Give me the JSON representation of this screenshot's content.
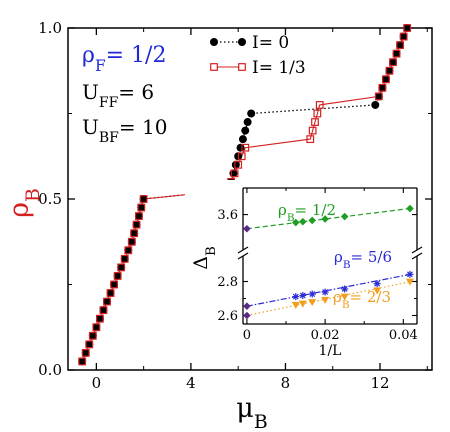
{
  "chart_data": [
    {
      "id": "main",
      "type": "scatter",
      "xlabel": {
        "base": "μ",
        "sub": "B"
      },
      "ylabel": {
        "base": "ρ",
        "sub": "B"
      },
      "xlim": [
        -1.2,
        14.2
      ],
      "ylim": [
        0.0,
        1.0
      ],
      "xticks": [
        0,
        4,
        8,
        12
      ],
      "xtick_labels": [
        "0",
        "4",
        "8",
        "12"
      ],
      "yticks": [
        0.0,
        0.5,
        1.0
      ],
      "ytick_labels": [
        "0.0",
        "0.5",
        "1.0"
      ],
      "annotations": [
        {
          "base": "ρ",
          "sub": "F",
          "rest": "= 1/2",
          "color": "#1f2ad6"
        },
        {
          "base": "U",
          "sub": "FF",
          "rest": "= 6",
          "color": "#000000"
        },
        {
          "base": "U",
          "sub": "BF",
          "rest": "= 10",
          "color": "#000000"
        }
      ],
      "legend_position": "top-center",
      "series": [
        {
          "name": "I= 0",
          "color": "#000000",
          "marker": "filled-circle",
          "points": [
            [
              -0.6,
              0.025
            ],
            [
              -0.45,
              0.05
            ],
            [
              -0.3,
              0.075
            ],
            [
              -0.15,
              0.1
            ],
            [
              0.0,
              0.125
            ],
            [
              0.15,
              0.15
            ],
            [
              0.3,
              0.175
            ],
            [
              0.45,
              0.2
            ],
            [
              0.6,
              0.225
            ],
            [
              0.75,
              0.25
            ],
            [
              0.9,
              0.275
            ],
            [
              1.05,
              0.3
            ],
            [
              1.2,
              0.325
            ],
            [
              1.35,
              0.35
            ],
            [
              1.5,
              0.375
            ],
            [
              1.6,
              0.4
            ],
            [
              1.7,
              0.425
            ],
            [
              1.8,
              0.45
            ],
            [
              1.9,
              0.475
            ],
            [
              2.0,
              0.5
            ],
            [
              5.55,
              0.525
            ],
            [
              5.7,
              0.55
            ],
            [
              5.8,
              0.575
            ],
            [
              5.9,
              0.6
            ],
            [
              6.0,
              0.625
            ],
            [
              6.1,
              0.65
            ],
            [
              6.2,
              0.675
            ],
            [
              6.3,
              0.7
            ],
            [
              6.4,
              0.725
            ],
            [
              6.55,
              0.75
            ],
            [
              11.8,
              0.775
            ],
            [
              11.95,
              0.8
            ],
            [
              12.1,
              0.825
            ],
            [
              12.25,
              0.85
            ],
            [
              12.4,
              0.875
            ],
            [
              12.55,
              0.9
            ],
            [
              12.7,
              0.925
            ],
            [
              12.85,
              0.95
            ],
            [
              13.0,
              0.975
            ],
            [
              13.15,
              1.0
            ]
          ]
        },
        {
          "name": "I= 1/3",
          "color": "#d42020",
          "marker": "open-square",
          "points": [
            [
              -0.6,
              0.025
            ],
            [
              -0.45,
              0.05
            ],
            [
              -0.3,
              0.075
            ],
            [
              -0.15,
              0.1
            ],
            [
              0.0,
              0.125
            ],
            [
              0.15,
              0.15
            ],
            [
              0.3,
              0.175
            ],
            [
              0.45,
              0.2
            ],
            [
              0.6,
              0.225
            ],
            [
              0.75,
              0.25
            ],
            [
              0.9,
              0.275
            ],
            [
              1.05,
              0.3
            ],
            [
              1.2,
              0.325
            ],
            [
              1.35,
              0.35
            ],
            [
              1.5,
              0.375
            ],
            [
              1.6,
              0.4
            ],
            [
              1.7,
              0.425
            ],
            [
              1.8,
              0.45
            ],
            [
              1.9,
              0.475
            ],
            [
              2.0,
              0.5
            ],
            [
              5.55,
              0.525
            ],
            [
              5.7,
              0.55
            ],
            [
              5.85,
              0.575
            ],
            [
              6.0,
              0.6
            ],
            [
              6.15,
              0.625
            ],
            [
              6.3,
              0.65
            ],
            [
              9.05,
              0.675
            ],
            [
              9.15,
              0.7
            ],
            [
              9.25,
              0.725
            ],
            [
              9.35,
              0.75
            ],
            [
              9.45,
              0.775
            ],
            [
              11.95,
              0.8
            ],
            [
              12.1,
              0.825
            ],
            [
              12.25,
              0.85
            ],
            [
              12.4,
              0.875
            ],
            [
              12.55,
              0.9
            ],
            [
              12.7,
              0.925
            ],
            [
              12.85,
              0.95
            ],
            [
              13.0,
              0.975
            ],
            [
              13.15,
              1.0
            ]
          ]
        }
      ]
    },
    {
      "id": "inset",
      "type": "scatter",
      "xlabel": "1/L",
      "ylabel": {
        "base": "Δ",
        "sub": "B"
      },
      "xlim": [
        -0.001,
        0.0435
      ],
      "ylim": [
        2.55,
        3.75
      ],
      "axis_break_y": [
        2.95,
        3.4
      ],
      "xticks": [
        0,
        0.02,
        0.04
      ],
      "xtick_labels": [
        "0",
        "0.02",
        "0.04"
      ],
      "yticks": [
        2.6,
        2.8,
        3.6
      ],
      "ytick_labels": [
        "2.6",
        "2.8",
        "3.6"
      ],
      "series": [
        {
          "name": "1/2",
          "label_base": "ρ",
          "label_sub": "B",
          "label_rest": "= 1/2",
          "color": "#1f9e22",
          "marker": "filled-diamond",
          "linestyle": "dashed",
          "extrap": [
            0,
            3.52
          ],
          "points": [
            [
              0.0125,
              3.555
            ],
            [
              0.0143,
              3.56
            ],
            [
              0.0167,
              3.567
            ],
            [
              0.02,
              3.575
            ],
            [
              0.025,
              3.589
            ],
            [
              0.0417,
              3.634
            ]
          ]
        },
        {
          "name": "5/6",
          "label_base": "ρ",
          "label_sub": "B",
          "label_rest": "= 5/6",
          "color": "#2a2ad6",
          "marker": "star",
          "linestyle": "dashdot",
          "extrap": [
            0,
            2.655
          ],
          "points": [
            [
              0.0125,
              2.711
            ],
            [
              0.0143,
              2.718
            ],
            [
              0.0167,
              2.726
            ],
            [
              0.02,
              2.738
            ],
            [
              0.025,
              2.756
            ],
            [
              0.0333,
              2.787
            ],
            [
              0.0417,
              2.842
            ]
          ]
        },
        {
          "name": "2/3",
          "label_base": "ρ",
          "label_sub": "B",
          "label_rest": "= 2/3",
          "color": "#f0a020",
          "marker": "filled-triangle-down",
          "linestyle": "dotted",
          "extrap": [
            0,
            2.6
          ],
          "points": [
            [
              0.0125,
              2.662
            ],
            [
              0.0143,
              2.67
            ],
            [
              0.0167,
              2.679
            ],
            [
              0.02,
              2.692
            ],
            [
              0.025,
              2.711
            ],
            [
              0.0333,
              2.747
            ],
            [
              0.0417,
              2.799
            ]
          ]
        }
      ],
      "extrap_marker_color": "#5a2a8a"
    }
  ],
  "legend": {
    "entries": [
      {
        "label": "I= 0",
        "series": 0
      },
      {
        "label": "I= 1/3",
        "series": 1
      }
    ]
  }
}
